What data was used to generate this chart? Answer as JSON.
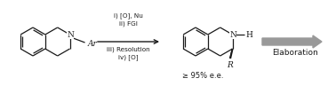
{
  "background_color": "#ffffff",
  "line_color": "#1a1a1a",
  "gray_color": "#999999",
  "text_steps_1": "i) [O], Nu",
  "text_steps_2": "ii) FGI",
  "text_steps_3": "iii) Resolution",
  "text_steps_4": "iv) [O]",
  "text_elaboration": "Elaboration",
  "text_ee": "≥ 95% e.e.",
  "text_N": "N",
  "text_Ar": "Ar",
  "text_H": "H",
  "text_R": "R",
  "figsize": [
    3.78,
    0.97
  ],
  "dpi": 100
}
